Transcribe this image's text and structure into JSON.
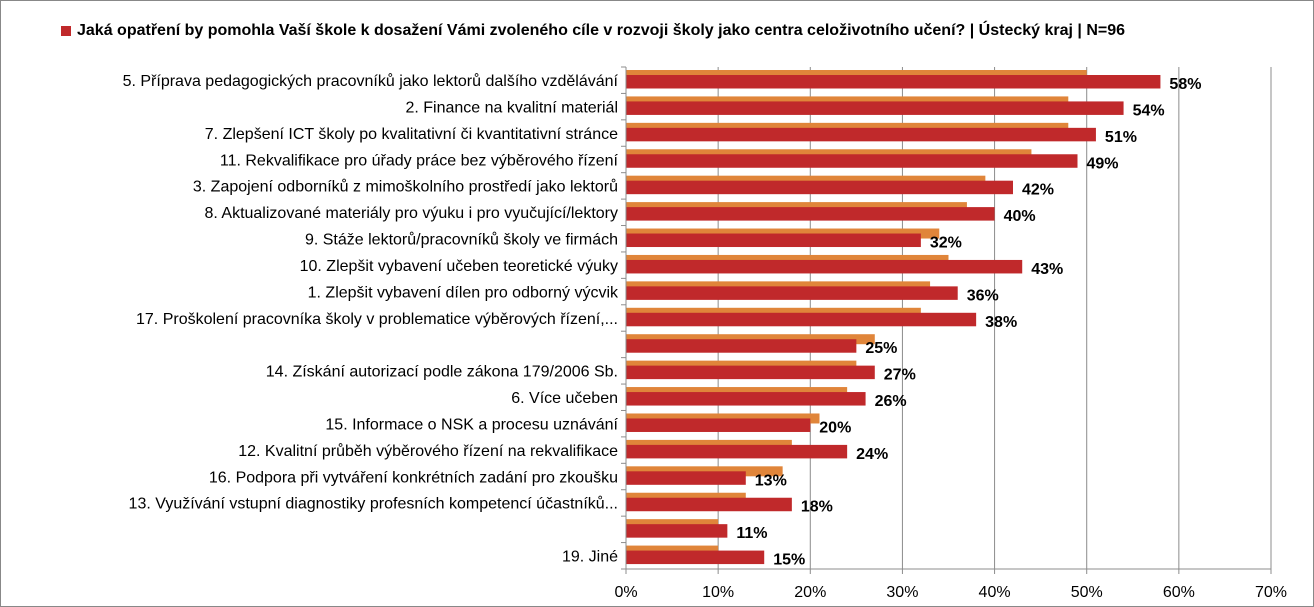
{
  "chart_data": {
    "type": "bar",
    "orientation": "horizontal",
    "title": "Jaká opatření by pomohla Vaší škole k dosažení Vámi zvoleného cíle v rozvoji školy jako centra celoživotního učení? | Ústecký kraj | N=96",
    "legend": "top",
    "grid": true,
    "categories": [
      "5. Příprava pedagogických pracovníků jako lektorů dalšího vzdělávání",
      "2. Finance na kvalitní materiál",
      "7. Zlepšení ICT školy po kvalitativní či kvantitativní stránce",
      "11. Rekvalifikace pro úřady práce bez výběrového řízení",
      "3. Zapojení odborníků z mimoškolního prostředí jako lektorů",
      "8. Aktualizované materiály pro výuku i pro vyučující/lektory",
      "9. Stáže lektorů/pracovníků školy ve firmách",
      "10. Zlepšit vybavení učeben teoretické výuky",
      "1. Zlepšit vybavení dílen pro odborný výcvik",
      "17. Proškolení pracovníka školy v problematice výběrových řízení,...",
      "",
      "14. Získání autorizací podle zákona 179/2006 Sb.",
      "6. Více učeben",
      "15. Informace o NSK a procesu uznávání",
      "12. Kvalitní průběh výběrového řízení na rekvalifikace",
      "16. Podpora při vytváření konkrétních zadání pro zkoušku",
      "13. Využívání vstupní diagnostiky profesních kompetencí účastníků...",
      "",
      "19. Jiné"
    ],
    "series": [
      {
        "name": "",
        "color": "#E0853A",
        "values": [
          50,
          48,
          48,
          44,
          39,
          37,
          34,
          35,
          33,
          32,
          27,
          25,
          24,
          21,
          18,
          17,
          13,
          10,
          10
        ]
      },
      {
        "name": "",
        "color": "#C0292B",
        "values": [
          58,
          54,
          51,
          49,
          42,
          40,
          32,
          43,
          36,
          38,
          25,
          27,
          26,
          20,
          24,
          13,
          18,
          11,
          15
        ]
      }
    ],
    "data_labels": [
      "58%",
      "54%",
      "51%",
      "49%",
      "42%",
      "40%",
      "32%",
      "43%",
      "36%",
      "38%",
      "25%",
      "27%",
      "26%",
      "20%",
      "24%",
      "13%",
      "18%",
      "11%",
      "15%"
    ],
    "xlim": [
      0,
      70
    ],
    "xticks": [
      0,
      10,
      20,
      30,
      40,
      50,
      60,
      70
    ],
    "xtick_labels": [
      "0%",
      "10%",
      "20%",
      "30%",
      "40%",
      "50%",
      "60%",
      "70%"
    ],
    "xlabel": "",
    "ylabel": ""
  },
  "legend_color": "#C0292B"
}
